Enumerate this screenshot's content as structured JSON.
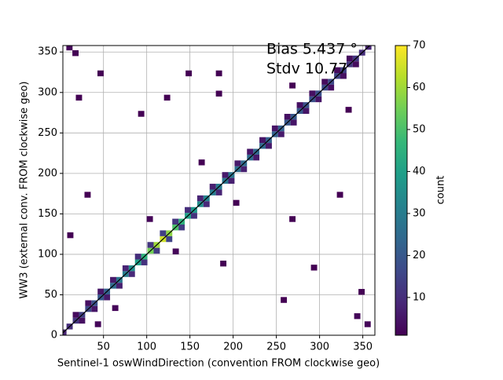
{
  "chart_data": {
    "type": "hist2d",
    "xlabel": "Sentinel-1 oswWindDirection (convention FROM clockwise geo)",
    "ylabel": "WW3 (external conv. FROM clockwise geo)",
    "annotations": [
      "Bias 5.437 °",
      "Stdv 10.77"
    ],
    "colorbar_label": "count",
    "xlim": [
      3,
      364
    ],
    "ylim": [
      0,
      358
    ],
    "xticks": [
      50,
      100,
      150,
      200,
      250,
      300,
      350
    ],
    "yticks": [
      0,
      50,
      100,
      150,
      200,
      250,
      300,
      350
    ],
    "clim": [
      1,
      70
    ],
    "cticks": [
      10,
      20,
      30,
      40,
      50,
      60,
      70
    ],
    "colormap": "viridis",
    "grid": true,
    "bin_size": 7.2,
    "cells": [
      [
        0,
        0,
        8
      ],
      [
        7.2,
        7.2,
        10
      ],
      [
        14.4,
        14.4,
        12
      ],
      [
        21.6,
        21.6,
        14
      ],
      [
        28.8,
        28.8,
        16
      ],
      [
        36,
        36,
        18
      ],
      [
        43.2,
        43.2,
        20
      ],
      [
        50.4,
        50.4,
        22
      ],
      [
        57.6,
        57.6,
        25
      ],
      [
        64.8,
        64.8,
        28
      ],
      [
        72,
        72,
        30
      ],
      [
        79.2,
        79.2,
        35
      ],
      [
        86.4,
        86.4,
        40
      ],
      [
        93.6,
        93.6,
        45
      ],
      [
        100.8,
        100.8,
        55
      ],
      [
        108,
        108,
        60
      ],
      [
        115.2,
        115.2,
        65
      ],
      [
        122.4,
        122.4,
        58
      ],
      [
        129.6,
        129.6,
        50
      ],
      [
        136.8,
        136.8,
        45
      ],
      [
        144,
        144,
        40
      ],
      [
        151.2,
        151.2,
        38
      ],
      [
        158.4,
        158.4,
        35
      ],
      [
        165.6,
        165.6,
        32
      ],
      [
        172.8,
        172.8,
        30
      ],
      [
        180,
        180,
        30
      ],
      [
        187.2,
        187.2,
        28
      ],
      [
        194.4,
        194.4,
        28
      ],
      [
        201.6,
        201.6,
        26
      ],
      [
        208.8,
        208.8,
        25
      ],
      [
        216,
        216,
        25
      ],
      [
        223.2,
        223.2,
        24
      ],
      [
        230.4,
        230.4,
        24
      ],
      [
        237.6,
        237.6,
        22
      ],
      [
        244.8,
        244.8,
        22
      ],
      [
        252,
        252,
        22
      ],
      [
        259.2,
        259.2,
        20
      ],
      [
        266.4,
        266.4,
        20
      ],
      [
        273.6,
        273.6,
        20
      ],
      [
        280.8,
        280.8,
        18
      ],
      [
        288,
        288,
        18
      ],
      [
        295.2,
        295.2,
        18
      ],
      [
        302.4,
        302.4,
        16
      ],
      [
        309.6,
        309.6,
        16
      ],
      [
        316.8,
        316.8,
        15
      ],
      [
        324,
        324,
        14
      ],
      [
        331.2,
        331.2,
        12
      ],
      [
        338.4,
        338.4,
        12
      ],
      [
        345.6,
        345.6,
        10
      ],
      [
        352.8,
        352.8,
        8
      ],
      [
        14.4,
        21.6,
        3
      ],
      [
        28.8,
        36,
        4
      ],
      [
        43.2,
        50.4,
        5
      ],
      [
        57.6,
        64.8,
        6
      ],
      [
        72,
        79.2,
        8
      ],
      [
        86.4,
        93.6,
        10
      ],
      [
        100.8,
        108,
        12
      ],
      [
        115.2,
        122.4,
        14
      ],
      [
        129.6,
        136.8,
        12
      ],
      [
        144,
        151.2,
        10
      ],
      [
        158.4,
        165.6,
        8
      ],
      [
        172.8,
        180,
        7
      ],
      [
        187.2,
        194.4,
        6
      ],
      [
        201.6,
        208.8,
        6
      ],
      [
        216,
        223.2,
        5
      ],
      [
        230.4,
        237.6,
        5
      ],
      [
        244.8,
        252,
        5
      ],
      [
        259.2,
        266.4,
        4
      ],
      [
        273.6,
        280.8,
        4
      ],
      [
        288,
        295.2,
        4
      ],
      [
        302.4,
        309.6,
        3
      ],
      [
        316.8,
        324,
        3
      ],
      [
        331.2,
        338.4,
        3
      ],
      [
        21.6,
        14.4,
        4
      ],
      [
        36,
        28.8,
        5
      ],
      [
        50.4,
        43.2,
        6
      ],
      [
        64.8,
        57.6,
        7
      ],
      [
        79.2,
        72,
        9
      ],
      [
        93.6,
        86.4,
        11
      ],
      [
        108,
        100.8,
        13
      ],
      [
        122.4,
        115.2,
        15
      ],
      [
        136.8,
        129.6,
        13
      ],
      [
        151.2,
        144,
        11
      ],
      [
        165.6,
        158.4,
        9
      ],
      [
        180,
        172.8,
        8
      ],
      [
        194.4,
        187.2,
        7
      ],
      [
        208.8,
        201.6,
        7
      ],
      [
        223.2,
        216,
        6
      ],
      [
        237.6,
        230.4,
        6
      ],
      [
        252,
        244.8,
        6
      ],
      [
        266.4,
        259.2,
        5
      ],
      [
        280.8,
        273.6,
        5
      ],
      [
        295.2,
        288,
        5
      ],
      [
        309.6,
        302.4,
        4
      ],
      [
        324,
        316.8,
        4
      ],
      [
        338.4,
        331.2,
        3
      ],
      [
        7,
        352,
        2
      ],
      [
        14,
        345,
        1
      ],
      [
        43,
        320,
        1
      ],
      [
        18,
        290,
        1
      ],
      [
        90,
        270,
        1
      ],
      [
        145,
        320,
        1
      ],
      [
        120,
        290,
        1
      ],
      [
        180,
        295,
        1
      ],
      [
        180,
        320,
        1
      ],
      [
        265,
        305,
        1
      ],
      [
        330,
        275,
        1
      ],
      [
        8,
        120,
        1
      ],
      [
        28,
        170,
        1
      ],
      [
        185,
        85,
        1
      ],
      [
        255,
        40,
        1
      ],
      [
        265,
        140,
        1
      ],
      [
        320,
        170,
        1
      ],
      [
        290,
        80,
        1
      ],
      [
        340,
        20,
        2
      ],
      [
        352,
        10,
        2
      ],
      [
        130,
        100,
        2
      ],
      [
        100,
        140,
        2
      ],
      [
        200,
        160,
        1
      ],
      [
        160,
        210,
        1
      ],
      [
        345,
        50,
        1
      ],
      [
        40,
        10,
        2
      ],
      [
        60,
        30,
        2
      ]
    ]
  }
}
